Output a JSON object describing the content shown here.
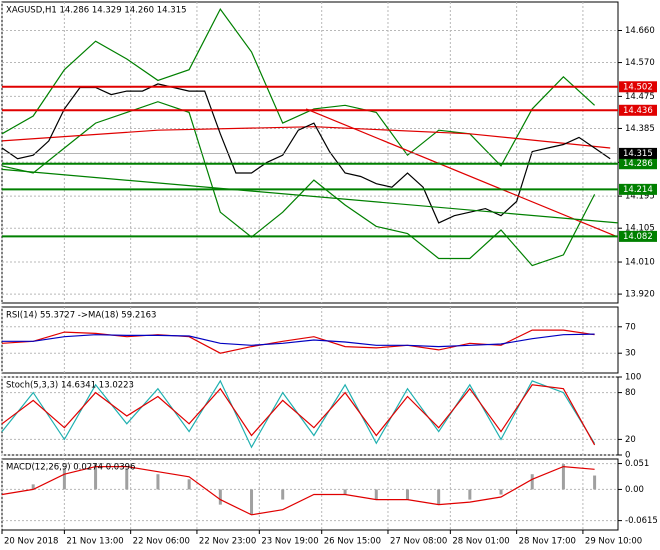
{
  "chart_data": [
    {
      "type": "line",
      "title": "XAGUSD,H1  14.286 14.329 14.260 14.315",
      "xlim": [
        0,
        158
      ],
      "ylim": [
        13.895,
        14.74
      ],
      "yticks": [
        {
          "value": 14.66,
          "label": "14.660"
        },
        {
          "value": 14.57,
          "label": "14.570"
        },
        14.475,
        14.385,
        {
          "value": 14.29,
          "label": "14.290"
        },
        14.195,
        14.105,
        {
          "value": 14.01,
          "label": "14.010"
        },
        {
          "value": 13.92,
          "label": "13.920"
        }
      ],
      "grid": true,
      "series": [
        {
          "color": "#008000",
          "x": [
            0,
            8,
            16,
            24,
            32,
            40,
            48,
            56,
            64,
            72,
            80,
            88,
            96,
            104,
            112,
            120,
            128,
            136,
            144,
            152
          ],
          "values": [
            14.37,
            14.42,
            14.55,
            14.63,
            14.58,
            14.52,
            14.55,
            14.72,
            14.6,
            14.4,
            14.44,
            14.45,
            14.43,
            14.31,
            14.38,
            14.37,
            14.28,
            14.44,
            14.53,
            14.45
          ]
        },
        {
          "color": "#008000",
          "x": [
            0,
            8,
            16,
            24,
            32,
            40,
            48,
            56,
            64,
            72,
            80,
            88,
            96,
            104,
            112,
            120,
            128,
            136,
            144,
            152
          ],
          "values": [
            14.28,
            14.26,
            14.33,
            14.4,
            14.43,
            14.46,
            14.43,
            14.15,
            14.08,
            14.15,
            14.24,
            14.17,
            14.11,
            14.09,
            14.02,
            14.02,
            14.1,
            14.0,
            14.03,
            14.2
          ]
        },
        {
          "color": "#e00000",
          "x": [
            0,
            40,
            80,
            120,
            156
          ],
          "values": [
            14.35,
            14.38,
            14.39,
            14.37,
            14.33
          ]
        },
        {
          "color": "#000000",
          "x": [
            0,
            4,
            8,
            12,
            16,
            20,
            24,
            28,
            32,
            36,
            40,
            44,
            48,
            52,
            56,
            60,
            64,
            68,
            72,
            76,
            80,
            84,
            88,
            92,
            96,
            100,
            104,
            108,
            112,
            116,
            120,
            124,
            128,
            132,
            136,
            140,
            144,
            148,
            152,
            156
          ],
          "values": [
            14.33,
            14.3,
            14.31,
            14.35,
            14.44,
            14.5,
            14.5,
            14.48,
            14.49,
            14.49,
            14.51,
            14.5,
            14.49,
            14.49,
            14.37,
            14.26,
            14.26,
            14.29,
            14.31,
            14.38,
            14.4,
            14.32,
            14.26,
            14.25,
            14.23,
            14.22,
            14.26,
            14.22,
            14.12,
            14.14,
            14.15,
            14.16,
            14.14,
            14.18,
            14.32,
            14.33,
            14.34,
            14.36,
            14.33,
            14.3
          ]
        }
      ],
      "trendlines": [
        {
          "color": "#e00000",
          "x": [
            78,
            158
          ],
          "values": [
            14.44,
            14.08
          ]
        },
        {
          "color": "#008000",
          "x": [
            0,
            158
          ],
          "values": [
            14.27,
            14.12
          ]
        }
      ],
      "levels": [
        {
          "value": 14.502,
          "color": "#e00000"
        },
        {
          "value": 14.436,
          "color": "#e00000"
        },
        {
          "value": 14.286,
          "color": "#008000"
        },
        {
          "value": 14.214,
          "color": "#008000"
        },
        {
          "value": 14.082,
          "color": "#008000"
        }
      ],
      "last_price": 14.315
    },
    {
      "type": "line",
      "title": "RSI(14) 55.3727  ->MA(18) 59.2163",
      "xlim": [
        0,
        158
      ],
      "ylim": [
        0,
        100
      ],
      "yticks": [
        70,
        30
      ],
      "grid": true,
      "series": [
        {
          "color": "#e00000",
          "x": [
            0,
            8,
            16,
            24,
            32,
            40,
            48,
            56,
            64,
            72,
            80,
            88,
            96,
            104,
            112,
            120,
            128,
            136,
            144,
            152
          ],
          "values": [
            45,
            48,
            62,
            60,
            55,
            58,
            55,
            30,
            40,
            48,
            55,
            40,
            38,
            42,
            35,
            45,
            42,
            65,
            65,
            58
          ]
        },
        {
          "color": "#0000c0",
          "x": [
            0,
            8,
            16,
            24,
            32,
            40,
            48,
            56,
            64,
            72,
            80,
            88,
            96,
            104,
            112,
            120,
            128,
            136,
            144,
            152
          ],
          "values": [
            48,
            48,
            55,
            58,
            57,
            57,
            56,
            45,
            42,
            45,
            50,
            47,
            42,
            42,
            40,
            42,
            44,
            52,
            58,
            59
          ]
        }
      ]
    },
    {
      "type": "line",
      "title": "Stoch(5,3,3) 14.6341 13.0223",
      "xlim": [
        0,
        158
      ],
      "ylim": [
        0,
        100
      ],
      "yticks": [
        100,
        80,
        20,
        0
      ],
      "grid": true,
      "series": [
        {
          "color": "#20b0b0",
          "x": [
            0,
            8,
            16,
            24,
            32,
            40,
            48,
            56,
            64,
            72,
            80,
            88,
            96,
            104,
            112,
            120,
            128,
            136,
            144,
            152
          ],
          "values": [
            30,
            80,
            20,
            90,
            40,
            85,
            30,
            95,
            10,
            80,
            25,
            90,
            15,
            85,
            30,
            90,
            20,
            95,
            80,
            14.6
          ]
        },
        {
          "color": "#e00000",
          "x": [
            0,
            8,
            16,
            24,
            32,
            40,
            48,
            56,
            64,
            72,
            80,
            88,
            96,
            104,
            112,
            120,
            128,
            136,
            144,
            152
          ],
          "values": [
            40,
            70,
            35,
            80,
            50,
            75,
            40,
            85,
            25,
            70,
            35,
            80,
            25,
            75,
            35,
            85,
            30,
            90,
            85,
            13.0
          ]
        }
      ]
    },
    {
      "type": "macd",
      "title": "MACD(12,26,9) 0.0274 0.0396",
      "xlim": [
        0,
        158
      ],
      "ylim": [
        -0.08,
        0.06
      ],
      "yticks": [
        0.051,
        {
          "value": 0,
          "label": "0.00"
        },
        -0.0615
      ],
      "grid": true,
      "xticks": [
        {
          "value": 0,
          "label": "20 Nov 2018"
        },
        {
          "value": 16,
          "label": "21 Nov 13:00"
        },
        {
          "value": 33,
          "label": "22 Nov 06:00"
        },
        {
          "value": 50,
          "label": "22 Nov 23:00"
        },
        {
          "value": 66,
          "label": "23 Nov 19:00"
        },
        {
          "value": 82,
          "label": "26 Nov 15:00"
        },
        {
          "value": 99,
          "label": "27 Nov 08:00"
        },
        {
          "value": 115,
          "label": "28 Nov 01:00"
        },
        {
          "value": 132,
          "label": "28 Nov 17:00"
        },
        {
          "value": 149,
          "label": "29 Nov 10:00"
        }
      ],
      "series": [
        {
          "kind": "bar",
          "color": "#a0a0a0",
          "x": [
            0,
            8,
            16,
            24,
            32,
            40,
            48,
            56,
            64,
            72,
            80,
            88,
            96,
            104,
            112,
            120,
            128,
            136,
            144,
            152
          ],
          "values": [
            0.0,
            0.01,
            0.04,
            0.05,
            0.04,
            0.03,
            0.02,
            -0.03,
            -0.05,
            -0.02,
            0.0,
            -0.01,
            -0.02,
            -0.02,
            -0.03,
            -0.02,
            -0.01,
            0.03,
            0.05,
            0.0274
          ]
        },
        {
          "kind": "line",
          "color": "#e00000",
          "x": [
            0,
            8,
            16,
            24,
            32,
            40,
            48,
            56,
            64,
            72,
            80,
            88,
            96,
            104,
            112,
            120,
            128,
            136,
            144,
            152
          ],
          "values": [
            -0.01,
            0.0,
            0.03,
            0.045,
            0.045,
            0.035,
            0.025,
            -0.02,
            -0.05,
            -0.04,
            -0.01,
            -0.01,
            -0.02,
            -0.02,
            -0.03,
            -0.025,
            -0.015,
            0.02,
            0.045,
            0.0396
          ]
        }
      ]
    }
  ]
}
